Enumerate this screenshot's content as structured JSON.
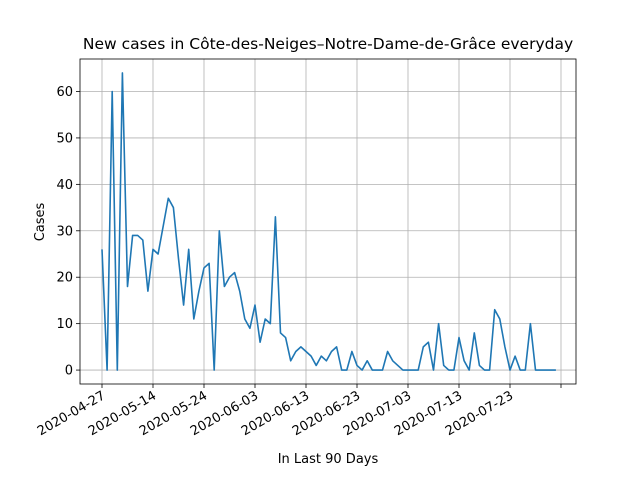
{
  "chart_data": {
    "type": "line",
    "title": "New cases in Côte-des-Neiges–Notre-Dame-de-Grâce everyday",
    "xlabel": "In Last 90 Days",
    "ylabel": "Cases",
    "x_tick_labels": [
      "2020-04-27",
      "2020-05-14",
      "2020-05-24",
      "2020-06-03",
      "2020-06-13",
      "2020-06-23",
      "2020-07-03",
      "2020-07-13",
      "2020-07-23",
      ""
    ],
    "y_tick_labels": [
      "0",
      "10",
      "20",
      "30",
      "40",
      "50",
      "60"
    ],
    "ylim": [
      -3,
      67
    ],
    "grid": true,
    "line_color": "#1f77b4",
    "x": [
      "2020-04-27",
      "2020-04-28",
      "2020-04-29",
      "2020-04-30",
      "2020-05-01",
      "2020-05-02",
      "2020-05-03",
      "2020-05-04",
      "2020-05-05",
      "2020-05-06",
      "2020-05-07",
      "2020-05-08",
      "2020-05-09",
      "2020-05-10",
      "2020-05-11",
      "2020-05-12",
      "2020-05-13",
      "2020-05-14",
      "2020-05-15",
      "2020-05-16",
      "2020-05-17",
      "2020-05-18",
      "2020-05-19",
      "2020-05-20",
      "2020-05-21",
      "2020-05-22",
      "2020-05-23",
      "2020-05-24",
      "2020-05-25",
      "2020-05-26",
      "2020-05-27",
      "2020-05-28",
      "2020-05-29",
      "2020-05-30",
      "2020-05-31",
      "2020-06-01",
      "2020-06-02",
      "2020-06-03",
      "2020-06-04",
      "2020-06-05",
      "2020-06-06",
      "2020-06-07",
      "2020-06-08",
      "2020-06-09",
      "2020-06-10",
      "2020-06-11",
      "2020-06-12",
      "2020-06-13",
      "2020-06-14",
      "2020-06-15",
      "2020-06-16",
      "2020-06-17",
      "2020-06-18",
      "2020-06-19",
      "2020-06-20",
      "2020-06-21",
      "2020-06-22",
      "2020-06-23",
      "2020-06-24",
      "2020-06-25",
      "2020-06-26",
      "2020-06-27",
      "2020-06-28",
      "2020-06-29",
      "2020-06-30",
      "2020-07-01",
      "2020-07-02",
      "2020-07-03",
      "2020-07-04",
      "2020-07-05",
      "2020-07-06",
      "2020-07-07",
      "2020-07-08",
      "2020-07-09",
      "2020-07-10",
      "2020-07-11",
      "2020-07-12",
      "2020-07-13",
      "2020-07-14",
      "2020-07-15",
      "2020-07-16",
      "2020-07-17",
      "2020-07-18",
      "2020-07-19",
      "2020-07-20",
      "2020-07-21",
      "2020-07-22",
      "2020-07-23",
      "2020-07-24",
      "2020-07-25"
    ],
    "series": [
      {
        "values": [
          26,
          0,
          60,
          0,
          64,
          18,
          29,
          29,
          28,
          17,
          26,
          25,
          31,
          37,
          35,
          24,
          14,
          26,
          11,
          17,
          22,
          23,
          0,
          30,
          18,
          20,
          21,
          17,
          11,
          9,
          14,
          6,
          11,
          10,
          33,
          8,
          7,
          2,
          4,
          5,
          4,
          3,
          1,
          3,
          2,
          4,
          5,
          0,
          0,
          4,
          1,
          0,
          2,
          0,
          0,
          0,
          4,
          2,
          1,
          0,
          0,
          0,
          0,
          5,
          6,
          0,
          10,
          1,
          0,
          0,
          7,
          2,
          0,
          8,
          1,
          0,
          0,
          13,
          11,
          5,
          0,
          3,
          0,
          0,
          10,
          0,
          0,
          0,
          0,
          0
        ]
      }
    ]
  }
}
